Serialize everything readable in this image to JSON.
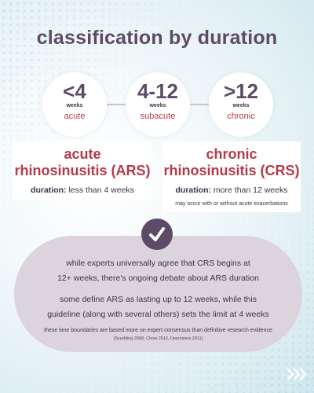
{
  "title": "classification by duration",
  "stages": [
    {
      "value": "<4",
      "unit": "weeks",
      "label": "acute"
    },
    {
      "value": "4-12",
      "unit": "weeks",
      "label": "subacute"
    },
    {
      "value": ">12",
      "unit": "weeks",
      "label": "chronic"
    }
  ],
  "cards": {
    "ars": {
      "title_line1": "acute",
      "title_line2": "rhinosinusitis (ARS)",
      "duration_label": "duration:",
      "duration_value": " less than 4 weeks"
    },
    "crs": {
      "title_line1": "chronic",
      "title_line2": "rhinosinusitis (CRS)",
      "duration_label": "duration:",
      "duration_value": " more than 12 weeks",
      "note": "may occur with or without acute exacerbations"
    }
  },
  "bubble": {
    "line1": "while experts universally agree that CRS begins at",
    "line2": "12+ weeks, there's ongoing debate about ARS duration",
    "line3": "some define ARS as lasting up to 12 weeks, while this",
    "line4": "guideline (along with several others) sets the limit at 4 weeks",
    "small": "these time boundaries are based more on expert consensus than definitive research evidence",
    "citation": "(Scadding 2008, Chow 2012, Desrosiers 2011)"
  },
  "icons": {
    "check": "check-icon",
    "next": "chevrons-right-icon"
  },
  "colors": {
    "heading": "#5c4a66",
    "accent": "#b43a4a",
    "bubble": "#dcd4dd",
    "next": "#ffffff"
  }
}
